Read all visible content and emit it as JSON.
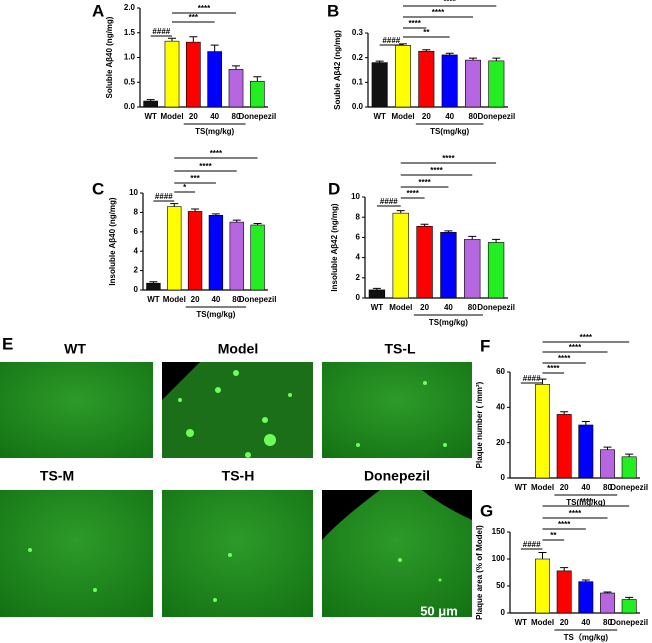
{
  "panels": {
    "E": {
      "letter": "E",
      "images": [
        "WT",
        "Model",
        "TS-L",
        "TS-M",
        "TS-H",
        "Donepezil"
      ],
      "scale_bar": "50 μm"
    }
  },
  "chart_data": [
    {
      "type": "bar",
      "letter": "A",
      "ylabel": "Soluble Aβ40 (ng/mg)",
      "categories": [
        "WT",
        "Model",
        "20",
        "40",
        "80",
        "Donepezil"
      ],
      "group_label": "TS(mg/kg)",
      "values": [
        0.12,
        1.33,
        1.31,
        1.12,
        0.76,
        0.52
      ],
      "errors": [
        0.03,
        0.06,
        0.11,
        0.13,
        0.07,
        0.09
      ],
      "colors": [
        "#111111",
        "#ffff00",
        "#ff0000",
        "#0000ff",
        "#b566e0",
        "#22ee22"
      ],
      "ylim": [
        0,
        2.0
      ],
      "yticks": [
        {
          "value": 0,
          "label": "0.0"
        },
        {
          "value": 0.5,
          "label": "0.5"
        },
        {
          "value": 1.0,
          "label": "1.0"
        },
        {
          "value": 1.5,
          "label": "1.5"
        },
        {
          "value": 2.0,
          "label": "2.0"
        }
      ],
      "annotations": [
        "####",
        "***",
        "****"
      ]
    },
    {
      "type": "bar",
      "letter": "B",
      "ylabel": "Souble Aβ42 (ng/mg)",
      "categories": [
        "WT",
        "Model",
        "20",
        "40",
        "80",
        "Donepezil"
      ],
      "group_label": "TS(mg/kg)",
      "values": [
        0.18,
        0.25,
        0.226,
        0.211,
        0.19,
        0.187
      ],
      "errors": [
        0.006,
        0.006,
        0.006,
        0.007,
        0.008,
        0.011
      ],
      "colors": [
        "#111111",
        "#ffff00",
        "#ff0000",
        "#0000ff",
        "#b566e0",
        "#22ee22"
      ],
      "ylim": [
        0,
        0.3
      ],
      "yticks": [
        {
          "value": 0,
          "label": "0.0"
        },
        0.1,
        0.2,
        0.3
      ],
      "annotations": [
        "####",
        "**",
        "****",
        "****",
        "****"
      ]
    },
    {
      "type": "bar",
      "letter": "C",
      "ylabel": "Insoluble Aβ40 (ng/mg)",
      "categories": [
        "WT",
        "Model",
        "20",
        "40",
        "80",
        "Donepezil"
      ],
      "group_label": "TS(mg/kg)",
      "values": [
        0.7,
        8.6,
        8.1,
        7.7,
        7.0,
        6.7
      ],
      "errors": [
        0.15,
        0.3,
        0.25,
        0.15,
        0.2,
        0.15
      ],
      "colors": [
        "#111111",
        "#ffff00",
        "#ff0000",
        "#0000ff",
        "#b566e0",
        "#22ee22"
      ],
      "ylim": [
        0,
        10
      ],
      "yticks": [
        0,
        2,
        4,
        6,
        8,
        10
      ],
      "annotations": [
        "####",
        "*",
        "***",
        "****",
        "****"
      ]
    },
    {
      "type": "bar",
      "letter": "D",
      "ylabel": "Insoluble Aβ42 (ng/mg)",
      "categories": [
        "WT",
        "Model",
        "20",
        "40",
        "80",
        "Donepezil"
      ],
      "group_label": "TS(mg/kg)",
      "values": [
        0.8,
        8.4,
        7.1,
        6.5,
        5.8,
        5.5
      ],
      "errors": [
        0.15,
        0.25,
        0.2,
        0.15,
        0.3,
        0.3
      ],
      "colors": [
        "#111111",
        "#ffff00",
        "#ff0000",
        "#0000ff",
        "#b566e0",
        "#22ee22"
      ],
      "ylim": [
        0,
        10
      ],
      "yticks": [
        0,
        2,
        4,
        6,
        8,
        10
      ],
      "annotations": [
        "####",
        "****",
        "****",
        "****",
        "****"
      ]
    },
    {
      "type": "bar",
      "letter": "F",
      "ylabel": "Plaque number ( /mm²)",
      "categories": [
        "WT",
        "Model",
        "20",
        "40",
        "80",
        "Donepezil"
      ],
      "group_label": "TS(mg/kg)",
      "values": [
        0,
        53,
        36,
        30,
        16,
        12
      ],
      "errors": [
        0,
        3,
        1.5,
        2,
        1.5,
        1.5
      ],
      "colors": [
        "#111111",
        "#ffff00",
        "#ff0000",
        "#0000ff",
        "#b566e0",
        "#22ee22"
      ],
      "ylim": [
        0,
        60
      ],
      "yticks": [
        0,
        20,
        40,
        60
      ],
      "annotations": [
        "####",
        "****",
        "****",
        "****",
        "****"
      ]
    },
    {
      "type": "bar",
      "letter": "G",
      "ylabel": "Plaque area (% of Model)",
      "categories": [
        "WT",
        "Model",
        "20",
        "40",
        "80",
        "Donepezil"
      ],
      "group_label": "TS（mg/kg)",
      "values": [
        0,
        100,
        78,
        58,
        37,
        25
      ],
      "errors": [
        0,
        12,
        6,
        3,
        2,
        4
      ],
      "colors": [
        "#111111",
        "#ffff00",
        "#ff0000",
        "#0000ff",
        "#b566e0",
        "#22ee22"
      ],
      "ylim": [
        0,
        150
      ],
      "yticks": [
        0,
        50,
        100,
        150
      ],
      "annotations": [
        "####",
        "**",
        "****",
        "****",
        "****"
      ]
    }
  ]
}
